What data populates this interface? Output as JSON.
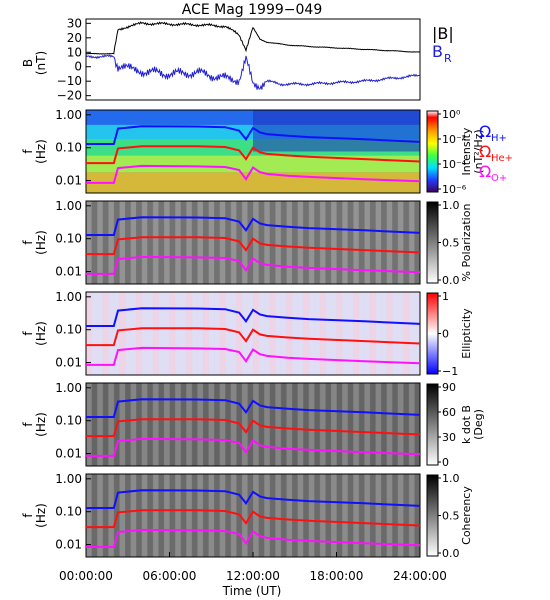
{
  "figure": {
    "title": "ACE Mag 1999−049",
    "xlabel": "Time (UT)",
    "xticks": [
      "00:00:00",
      "06:00:00",
      "12:00:00",
      "18:00:00",
      "24:00:00"
    ]
  },
  "colors": {
    "btotal": "#000000",
    "br": "#2020d0",
    "h_plus": "#1010ff",
    "he_plus": "#ff1010",
    "o_plus": "#ff10ff"
  },
  "legend_mag": {
    "btotal": "|B|",
    "br": "B",
    "br_sub": "R"
  },
  "legend_gyro": {
    "h_plus": {
      "sym": "Ω",
      "sub": "H+"
    },
    "he_plus": {
      "sym": "Ω",
      "sub": "He+"
    },
    "o_plus": {
      "sym": "Ω",
      "sub": "O+"
    }
  },
  "chart_data": [
    {
      "type": "line",
      "panel": "magnetic-field",
      "ylabel": "B",
      "yunit": "(nT)",
      "yticks": [
        "30",
        "20",
        "10",
        "0",
        "−10",
        "−20"
      ],
      "ylim": [
        -23,
        33
      ],
      "xlim_hours": [
        0,
        24
      ],
      "series": [
        {
          "name": "|B|",
          "x_hours": [
            0,
            2,
            2.3,
            4,
            8,
            10,
            11,
            11.5,
            12,
            12.5,
            13,
            14.5,
            16,
            20,
            24
          ],
          "values": [
            9,
            9,
            26,
            30,
            29,
            28,
            22,
            12,
            27,
            19,
            17,
            15,
            14,
            12,
            10
          ]
        },
        {
          "name": "B_R",
          "x_hours": [
            0,
            2,
            2.3,
            4,
            6,
            8,
            10,
            11,
            11.5,
            12,
            12.5,
            13,
            14,
            16,
            20,
            22,
            24
          ],
          "values": [
            7,
            7,
            0,
            -3,
            -5,
            -4,
            -8,
            -9,
            5,
            -12,
            -13,
            -10,
            -12,
            -12,
            -10,
            -8,
            -6
          ]
        }
      ]
    },
    {
      "type": "heatmap",
      "panel": "intensity",
      "ylabel": "f",
      "yunit": "(Hz)",
      "yticks": [
        "1.00",
        "0.10",
        "0.01"
      ],
      "yscale": "log",
      "colorbar": {
        "label": "Intensity",
        "unit": "(nT²/Hz)",
        "ticks": [
          "10⁰",
          "10⁻²",
          "10⁻⁴",
          "10⁻⁶"
        ]
      }
    },
    {
      "type": "heatmap",
      "panel": "polarization",
      "ylabel": "f",
      "yunit": "(Hz)",
      "yticks": [
        "1.00",
        "0.10",
        "0.01"
      ],
      "yscale": "log",
      "colorbar": {
        "label": "% Polarization",
        "unit": "",
        "ticks": [
          "1.0",
          "0.5",
          "0.0"
        ]
      }
    },
    {
      "type": "heatmap",
      "panel": "ellipticity",
      "ylabel": "f",
      "yunit": "(Hz)",
      "yticks": [
        "1.00",
        "0.10",
        "0.01"
      ],
      "yscale": "log",
      "colorbar": {
        "label": "Ellipticity",
        "unit": "",
        "ticks": [
          "1",
          "0",
          "−1"
        ]
      }
    },
    {
      "type": "heatmap",
      "panel": "kdotb",
      "ylabel": "f",
      "yunit": "(Hz)",
      "yticks": [
        "1.00",
        "0.10",
        "0.01"
      ],
      "yscale": "log",
      "colorbar": {
        "label": "k dot B",
        "unit": "(Deg)",
        "ticks": [
          "90",
          "60",
          "30",
          "0"
        ]
      }
    },
    {
      "type": "heatmap",
      "panel": "coherency",
      "ylabel": "f",
      "yunit": "(Hz)",
      "yticks": [
        "1.00",
        "0.10",
        "0.01"
      ],
      "yscale": "log",
      "colorbar": {
        "label": "Coherency",
        "unit": "",
        "ticks": [
          "1.0",
          "0.5",
          "0.0"
        ]
      }
    }
  ],
  "gyrofrequency_lines": {
    "x_hours": [
      0,
      2,
      2.3,
      4,
      8,
      10,
      11,
      11.5,
      12,
      12.5,
      13,
      14.5,
      16,
      20,
      24
    ],
    "h_plus_hz": [
      0.13,
      0.13,
      0.38,
      0.45,
      0.44,
      0.42,
      0.33,
      0.18,
      0.4,
      0.29,
      0.26,
      0.23,
      0.21,
      0.18,
      0.15
    ],
    "he_plus_hz": [
      0.034,
      0.034,
      0.095,
      0.11,
      0.11,
      0.105,
      0.083,
      0.045,
      0.1,
      0.072,
      0.065,
      0.058,
      0.053,
      0.045,
      0.038
    ],
    "o_plus_hz": [
      0.0085,
      0.0085,
      0.024,
      0.028,
      0.027,
      0.026,
      0.021,
      0.011,
      0.025,
      0.018,
      0.016,
      0.014,
      0.013,
      0.011,
      0.0095
    ]
  }
}
